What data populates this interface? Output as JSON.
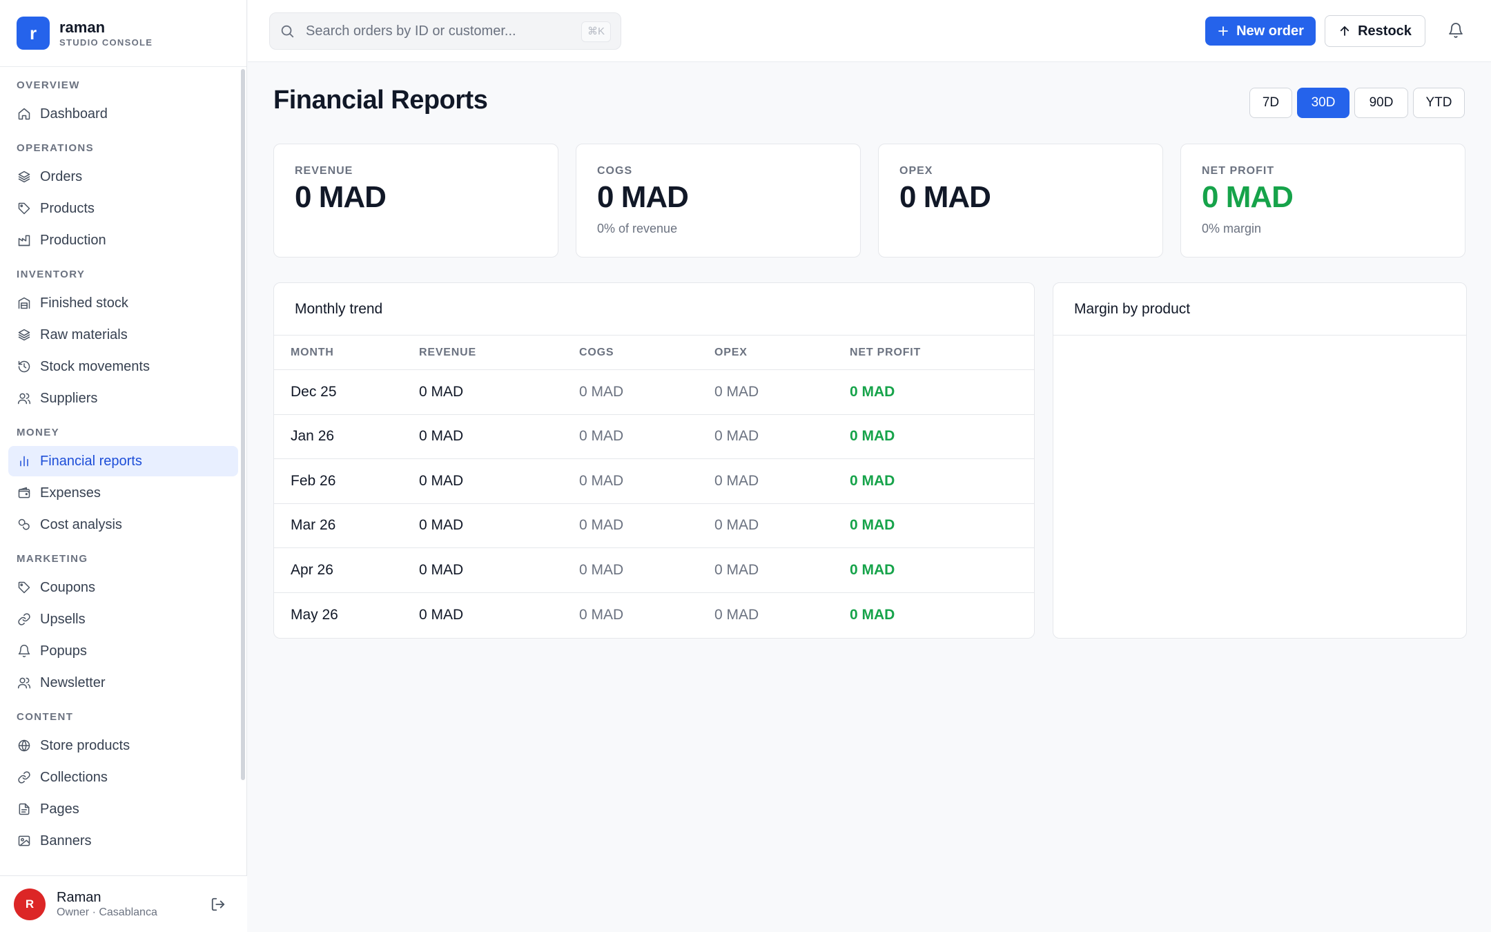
{
  "brand": {
    "logo_letter": "r",
    "name": "raman",
    "subtitle": "STUDIO CONSOLE"
  },
  "sidebar": {
    "sections": [
      {
        "heading": "OVERVIEW",
        "items": [
          {
            "label": "Dashboard",
            "icon": "home-icon"
          }
        ]
      },
      {
        "heading": "OPERATIONS",
        "items": [
          {
            "label": "Orders",
            "icon": "layers-icon"
          },
          {
            "label": "Products",
            "icon": "tag-icon"
          },
          {
            "label": "Production",
            "icon": "factory-icon"
          }
        ]
      },
      {
        "heading": "INVENTORY",
        "items": [
          {
            "label": "Finished stock",
            "icon": "warehouse-icon"
          },
          {
            "label": "Raw materials",
            "icon": "layers-icon"
          },
          {
            "label": "Stock movements",
            "icon": "history-icon"
          },
          {
            "label": "Suppliers",
            "icon": "users-icon"
          }
        ]
      },
      {
        "heading": "MONEY",
        "items": [
          {
            "label": "Financial reports",
            "icon": "bar-chart-icon",
            "active": true
          },
          {
            "label": "Expenses",
            "icon": "wallet-icon"
          },
          {
            "label": "Cost analysis",
            "icon": "coins-icon"
          }
        ]
      },
      {
        "heading": "MARKETING",
        "items": [
          {
            "label": "Coupons",
            "icon": "tag-icon"
          },
          {
            "label": "Upsells",
            "icon": "link-icon"
          },
          {
            "label": "Popups",
            "icon": "bell-icon"
          },
          {
            "label": "Newsletter",
            "icon": "users-icon"
          }
        ]
      },
      {
        "heading": "CONTENT",
        "items": [
          {
            "label": "Store products",
            "icon": "globe-icon"
          },
          {
            "label": "Collections",
            "icon": "link-icon"
          },
          {
            "label": "Pages",
            "icon": "file-icon"
          },
          {
            "label": "Banners",
            "icon": "image-icon"
          }
        ]
      }
    ]
  },
  "user": {
    "initial": "R",
    "name": "Raman",
    "role": "Owner · Casablanca"
  },
  "topbar": {
    "search_placeholder": "Search orders by ID or customer...",
    "search_shortcut": "⌘K",
    "new_order_label": "New order",
    "restock_label": "Restock"
  },
  "page": {
    "title": "Financial Reports",
    "ranges": [
      "7D",
      "30D",
      "90D",
      "YTD"
    ],
    "active_range": "30D"
  },
  "kpis": [
    {
      "label": "REVENUE",
      "value": "0 MAD",
      "sub": ""
    },
    {
      "label": "COGS",
      "value": "0 MAD",
      "sub": "0% of revenue"
    },
    {
      "label": "OPEX",
      "value": "0 MAD",
      "sub": ""
    },
    {
      "label": "NET PROFIT",
      "value": "0 MAD",
      "sub": "0% margin",
      "accent": "#16a34a"
    }
  ],
  "trend": {
    "title": "Monthly trend",
    "columns": [
      "MONTH",
      "REVENUE",
      "COGS",
      "OPEX",
      "NET PROFIT"
    ],
    "rows": [
      {
        "month": "Dec 25",
        "revenue": "0 MAD",
        "cogs": "0 MAD",
        "opex": "0 MAD",
        "net": "0 MAD"
      },
      {
        "month": "Jan 26",
        "revenue": "0 MAD",
        "cogs": "0 MAD",
        "opex": "0 MAD",
        "net": "0 MAD"
      },
      {
        "month": "Feb 26",
        "revenue": "0 MAD",
        "cogs": "0 MAD",
        "opex": "0 MAD",
        "net": "0 MAD"
      },
      {
        "month": "Mar 26",
        "revenue": "0 MAD",
        "cogs": "0 MAD",
        "opex": "0 MAD",
        "net": "0 MAD"
      },
      {
        "month": "Apr 26",
        "revenue": "0 MAD",
        "cogs": "0 MAD",
        "opex": "0 MAD",
        "net": "0 MAD"
      },
      {
        "month": "May 26",
        "revenue": "0 MAD",
        "cogs": "0 MAD",
        "opex": "0 MAD",
        "net": "0 MAD"
      }
    ]
  },
  "margin": {
    "title": "Margin by product"
  },
  "colors": {
    "accent": "#2563eb",
    "positive": "#16a34a",
    "avatar": "#dc2626"
  }
}
